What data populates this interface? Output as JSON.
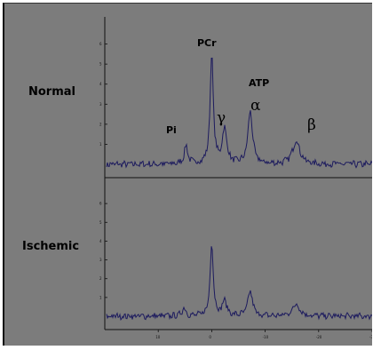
{
  "chart_data": [
    {
      "type": "line",
      "title": "",
      "panel_label": "Normal",
      "xlabel": "",
      "ylabel": "",
      "xlim": [
        20,
        -30
      ],
      "ylim": [
        0,
        7
      ],
      "x_ticks": [
        "10",
        "0",
        "-10",
        "-20",
        "-30"
      ],
      "y_ticks": [
        "1",
        "2",
        "3",
        "4",
        "5",
        "6"
      ],
      "annotations": [
        {
          "text": "Pi",
          "x": 5.0
        },
        {
          "text": "PCr",
          "x": 0.5
        },
        {
          "text": "ATP",
          "x": -7.5
        },
        {
          "text": "γ",
          "x": -2.5
        },
        {
          "text": "α",
          "x": -7.5
        },
        {
          "text": "β",
          "x": -16.0
        }
      ],
      "peaks": [
        {
          "name": "Pi",
          "x": 4.8,
          "height": 0.9,
          "width": 0.4
        },
        {
          "name": "PCr",
          "x": 0.0,
          "height": 5.5,
          "width": 0.35
        },
        {
          "name": "γ",
          "x": -2.4,
          "height": 1.75,
          "width": 0.5
        },
        {
          "name": "α",
          "x": -7.2,
          "height": 2.65,
          "width": 0.5
        },
        {
          "name": "β",
          "x": -15.8,
          "height": 1.2,
          "width": 0.8
        }
      ],
      "baseline": 0.0
    },
    {
      "type": "line",
      "title": "",
      "panel_label": "Ischemic",
      "xlabel": "",
      "ylabel": "",
      "xlim": [
        20,
        -30
      ],
      "ylim": [
        0,
        7
      ],
      "x_ticks": [
        "10",
        "0",
        "-10",
        "-20",
        "-30"
      ],
      "y_ticks": [
        "1",
        "2",
        "3",
        "4",
        "5",
        "6"
      ],
      "peaks": [
        {
          "name": "Pi",
          "x": 5.2,
          "height": 0.45,
          "width": 0.4
        },
        {
          "name": "PCr",
          "x": 0.0,
          "height": 3.9,
          "width": 0.35
        },
        {
          "name": "γ",
          "x": -2.4,
          "height": 0.8,
          "width": 0.5
        },
        {
          "name": "α",
          "x": -7.2,
          "height": 1.35,
          "width": 0.5
        },
        {
          "name": "β",
          "x": -15.8,
          "height": 0.65,
          "width": 0.8
        }
      ],
      "baseline": 0.0
    }
  ],
  "colors": {
    "background": "#7c7c7c",
    "trace": "#1d1b5e",
    "axis": "#111111"
  }
}
